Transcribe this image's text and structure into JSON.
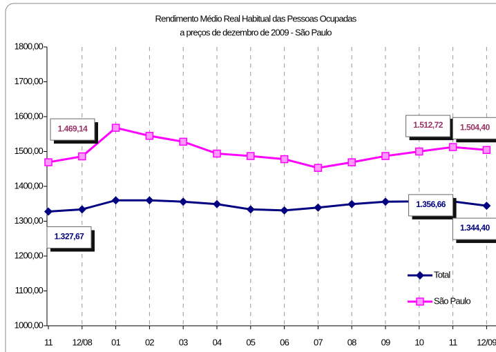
{
  "chart_data": {
    "type": "line",
    "title": "Rendimento Médio Real Habitual das Pessoas Ocupadas",
    "subtitle": "a preços de dezembro de 2009 - São Paulo",
    "categories": [
      "11",
      "12/08",
      "01",
      "02",
      "03",
      "04",
      "05",
      "06",
      "07",
      "08",
      "09",
      "10",
      "11",
      "12/09"
    ],
    "series": [
      {
        "name": "Total",
        "color": "#000080",
        "marker": "diamond",
        "values": [
          1327.67,
          1334,
          1360,
          1360,
          1356,
          1349,
          1334,
          1331,
          1339,
          1349,
          1356,
          1357,
          1356.66,
          1344.4
        ],
        "value_labels": [
          "1.327,67",
          null,
          null,
          null,
          null,
          null,
          null,
          null,
          null,
          null,
          null,
          null,
          "1.356,66",
          "1.344,40"
        ]
      },
      {
        "name": "São Paulo",
        "color": "#ff00ff",
        "marker": "square",
        "values": [
          1469.14,
          1486,
          1568,
          1545,
          1528,
          1494,
          1487,
          1478,
          1453,
          1469,
          1487,
          1500,
          1512.72,
          1504.4
        ],
        "value_labels": [
          "1.469,14",
          null,
          null,
          null,
          null,
          null,
          null,
          null,
          null,
          null,
          null,
          null,
          "1.512,72",
          "1.504,40"
        ]
      }
    ],
    "ylim": [
      1000,
      1800
    ],
    "yticks": [
      {
        "value": 1000,
        "label": "1000,00"
      },
      {
        "value": 1100,
        "label": "1100,00"
      },
      {
        "value": 1200,
        "label": "1200,00"
      },
      {
        "value": 1300,
        "label": "1300,00"
      },
      {
        "value": 1400,
        "label": "1400,00"
      },
      {
        "value": 1500,
        "label": "1500,00"
      },
      {
        "value": 1600,
        "label": "1600,00"
      },
      {
        "value": 1700,
        "label": "1700,00"
      },
      {
        "value": 1800,
        "label": "1800,00"
      }
    ],
    "legend": "bottom-right"
  }
}
